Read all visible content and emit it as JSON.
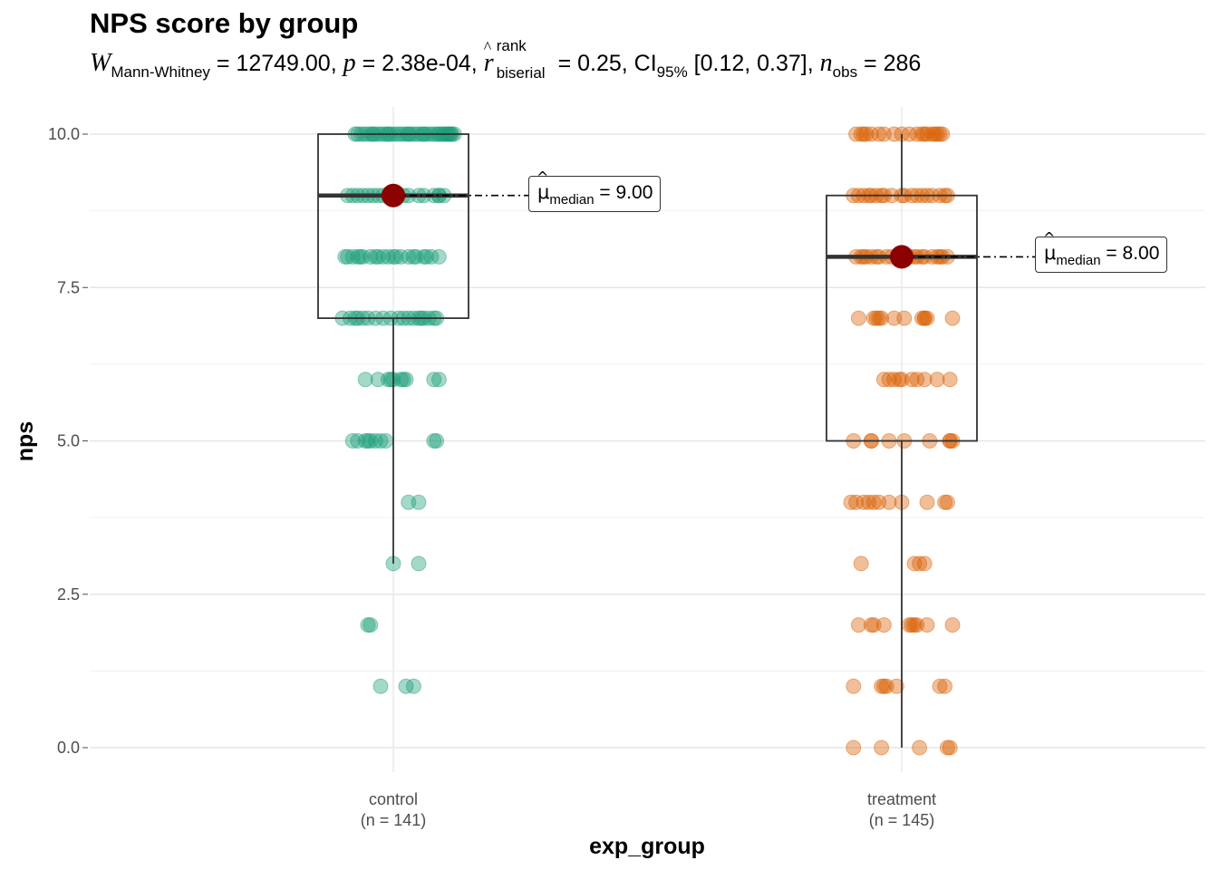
{
  "chart_data": {
    "type": "box",
    "title": "NPS score by group",
    "subtitle": {
      "W_label": "W",
      "W_sub": "Mann-Whitney",
      "W_value": "= 12749.00,",
      "p_label": "p",
      "p_value": "= 2.38e-04,",
      "r_label": "r",
      "r_sup": "rank",
      "r_sub": "biserial",
      "r_value": "= 0.25,",
      "ci_label": "CI",
      "ci_sub": "95%",
      "ci_value": "[0.12, 0.37],",
      "n_label": "n",
      "n_sub": "obs",
      "n_value": "= 286"
    },
    "xlabel": "exp_group",
    "ylabel": "nps",
    "ylim": [
      0,
      10
    ],
    "yticks": [
      "0.0",
      "2.5",
      "5.0",
      "7.5",
      "10.0"
    ],
    "ytick_values": [
      0,
      2.5,
      5,
      7.5,
      10
    ],
    "grid": true,
    "categories": [
      {
        "name": "control",
        "n_label": "(n = 141)",
        "color": "#1B9E77",
        "box": {
          "min": 3,
          "q1": 7,
          "median": 9,
          "q3": 10,
          "max": 10
        },
        "median_label": {
          "prefix": "μ",
          "sub": "median",
          "value": "= 9.00"
        },
        "points": [
          {
            "y": 10,
            "x": [
              -0.07,
              -0.063,
              -0.056,
              -0.049,
              -0.042,
              -0.035,
              -0.028,
              -0.021,
              -0.014,
              -0.007,
              0.0,
              0.007,
              0.014,
              0.021,
              0.028,
              0.035,
              0.042,
              0.049,
              0.056,
              0.063,
              0.07,
              0.077,
              0.084,
              0.091,
              0.098,
              0.105,
              0.11,
              0.115,
              0.12,
              -0.075,
              -0.04,
              -0.01,
              0.03,
              0.06,
              0.09,
              0.1,
              0.108,
              0.113
            ]
          },
          {
            "y": 9,
            "x": [
              -0.09,
              -0.07,
              -0.06,
              -0.05,
              -0.04,
              -0.03,
              -0.02,
              -0.01,
              0.0,
              0.01,
              0.02,
              0.03,
              0.05,
              0.06,
              0.08,
              0.09,
              0.1,
              0.09,
              -0.08
            ]
          },
          {
            "y": 8,
            "x": [
              -0.095,
              -0.08,
              -0.07,
              -0.065,
              -0.045,
              -0.035,
              -0.02,
              -0.01,
              0.0,
              0.015,
              0.03,
              0.045,
              0.06,
              0.075,
              0.09,
              -0.06,
              0.005,
              -0.09,
              0.04,
              0.065,
              -0.03
            ]
          },
          {
            "y": 7,
            "x": [
              -0.1,
              -0.085,
              -0.07,
              -0.06,
              -0.05,
              -0.035,
              -0.02,
              -0.005,
              0.01,
              0.03,
              0.04,
              0.05,
              0.06,
              0.07,
              0.08,
              0.085,
              -0.075,
              0.02,
              0.055
            ]
          },
          {
            "y": 6,
            "x": [
              -0.055,
              -0.03,
              -0.01,
              0.0,
              0.02,
              0.025,
              0.08,
              0.09,
              -0.005,
              0.015
            ]
          },
          {
            "y": 5,
            "x": [
              -0.08,
              -0.07,
              -0.055,
              -0.045,
              -0.035,
              -0.025,
              -0.015,
              0.08,
              0.085,
              -0.05
            ]
          },
          {
            "y": 4,
            "x": [
              0.03,
              0.05
            ]
          },
          {
            "y": 3,
            "x": [
              0.0,
              0.05
            ]
          },
          {
            "y": 2,
            "x": [
              -0.05,
              -0.045
            ]
          },
          {
            "y": 1,
            "x": [
              -0.025,
              0.025,
              0.04
            ]
          }
        ]
      },
      {
        "name": "treatment",
        "n_label": "(n = 145)",
        "color": "#D95F02",
        "box": {
          "min": 0,
          "q1": 5,
          "median": 8,
          "q3": 9,
          "max": 10
        },
        "median_label": {
          "prefix": "μ",
          "sub": "median",
          "value": "= 8.00"
        },
        "points": [
          {
            "y": 10,
            "x": [
              -0.09,
              -0.08,
              -0.07,
              -0.06,
              -0.045,
              -0.035,
              -0.015,
              0.0,
              0.015,
              0.03,
              0.04,
              0.05,
              0.06,
              0.07,
              0.075,
              0.08,
              -0.075,
              0.045,
              0.065
            ]
          },
          {
            "y": 9,
            "x": [
              -0.095,
              -0.085,
              -0.075,
              -0.06,
              -0.05,
              -0.035,
              -0.02,
              0.0,
              0.005,
              0.03,
              0.04,
              0.05,
              0.06,
              0.075,
              0.085,
              0.09,
              -0.065,
              0.02,
              -0.04
            ]
          },
          {
            "y": 8,
            "x": [
              -0.09,
              -0.08,
              -0.07,
              -0.06,
              -0.045,
              -0.03,
              -0.02,
              0.0,
              0.015,
              0.03,
              0.045,
              0.06,
              0.075,
              0.09,
              -0.075,
              0.04,
              -0.05,
              0.025,
              0.07,
              0.08
            ]
          },
          {
            "y": 7,
            "x": [
              -0.085,
              -0.055,
              -0.045,
              -0.04,
              -0.015,
              0.005,
              0.04,
              0.045,
              0.05,
              0.1,
              -0.05,
              0.045
            ]
          },
          {
            "y": 6,
            "x": [
              -0.035,
              -0.025,
              -0.015,
              0.0,
              0.02,
              0.045,
              0.07,
              0.095,
              -0.005,
              0.03
            ]
          },
          {
            "y": 5,
            "x": [
              -0.095,
              -0.06,
              -0.06,
              -0.025,
              0.005,
              0.055,
              0.095,
              0.1,
              0.095
            ]
          },
          {
            "y": 4,
            "x": [
              -0.1,
              -0.09,
              -0.075,
              -0.065,
              -0.055,
              -0.045,
              -0.025,
              0.0,
              0.05,
              0.085,
              0.09
            ]
          },
          {
            "y": 3,
            "x": [
              -0.08,
              0.025,
              0.035,
              0.045
            ]
          },
          {
            "y": 2,
            "x": [
              -0.085,
              -0.06,
              -0.055,
              -0.035,
              0.015,
              0.02,
              0.025,
              0.03,
              0.05,
              0.1
            ]
          },
          {
            "y": 1,
            "x": [
              -0.095,
              -0.04,
              -0.035,
              -0.03,
              -0.01,
              0.075,
              0.085
            ]
          },
          {
            "y": 0,
            "x": [
              -0.095,
              -0.04,
              0.035,
              0.09,
              0.095
            ]
          }
        ]
      }
    ]
  }
}
